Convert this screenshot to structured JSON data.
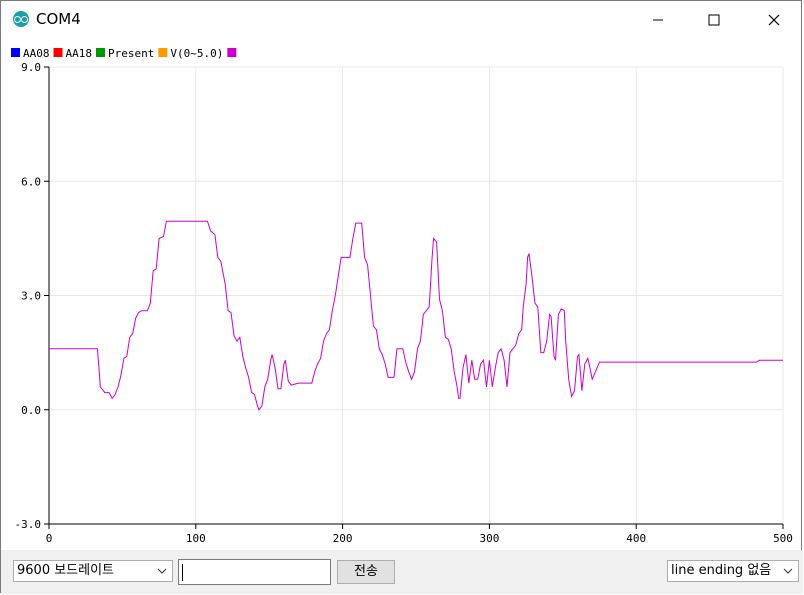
{
  "window": {
    "title": "COM4",
    "icon": "arduino-icon"
  },
  "legend": [
    {
      "label": "AA08",
      "color": "#0000ff"
    },
    {
      "label": "AA18",
      "color": "#ff0000"
    },
    {
      "label": "Present",
      "color": "#009900"
    },
    {
      "label": "V(0~5.0)",
      "color": "#ff9900"
    },
    {
      "label": "",
      "color": "#cc00cc"
    }
  ],
  "chart_data": {
    "type": "line",
    "xlim": [
      0,
      500
    ],
    "ylim": [
      -3.0,
      9.0
    ],
    "x_ticks": [
      "0",
      "100",
      "200",
      "300",
      "400",
      "500"
    ],
    "y_ticks": [
      "-3.0",
      "0.0",
      "3.0",
      "6.0",
      "9.0"
    ],
    "grid": true,
    "legend_placement": "top-left",
    "series": [
      {
        "color": "#cc00cc",
        "points": [
          [
            0,
            1.6
          ],
          [
            33,
            1.6
          ],
          [
            35,
            0.6
          ],
          [
            38,
            0.45
          ],
          [
            41,
            0.45
          ],
          [
            43,
            0.3
          ],
          [
            45,
            0.4
          ],
          [
            47,
            0.6
          ],
          [
            49,
            0.9
          ],
          [
            51,
            1.35
          ],
          [
            53,
            1.4
          ],
          [
            55,
            1.9
          ],
          [
            57,
            2.0
          ],
          [
            59,
            2.4
          ],
          [
            61,
            2.55
          ],
          [
            63,
            2.6
          ],
          [
            67,
            2.6
          ],
          [
            69,
            2.8
          ],
          [
            71,
            3.65
          ],
          [
            73,
            3.7
          ],
          [
            75,
            4.5
          ],
          [
            78,
            4.55
          ],
          [
            80,
            4.95
          ],
          [
            108,
            4.95
          ],
          [
            110,
            4.7
          ],
          [
            113,
            4.6
          ],
          [
            115,
            4.0
          ],
          [
            117,
            3.9
          ],
          [
            120,
            3.3
          ],
          [
            122,
            2.6
          ],
          [
            124,
            2.55
          ],
          [
            126,
            1.95
          ],
          [
            128,
            1.8
          ],
          [
            130,
            1.9
          ],
          [
            132,
            1.4
          ],
          [
            134,
            1.1
          ],
          [
            136,
            0.85
          ],
          [
            138,
            0.45
          ],
          [
            140,
            0.4
          ],
          [
            142,
            0.1
          ],
          [
            143,
            0.0
          ],
          [
            145,
            0.1
          ],
          [
            147,
            0.6
          ],
          [
            149,
            0.8
          ],
          [
            151,
            1.3
          ],
          [
            152,
            1.45
          ],
          [
            154,
            1.1
          ],
          [
            156,
            0.55
          ],
          [
            158,
            0.55
          ],
          [
            160,
            1.2
          ],
          [
            161,
            1.3
          ],
          [
            163,
            0.75
          ],
          [
            165,
            0.65
          ],
          [
            170,
            0.7
          ],
          [
            179,
            0.7
          ],
          [
            181,
            1.0
          ],
          [
            183,
            1.2
          ],
          [
            185,
            1.35
          ],
          [
            187,
            1.8
          ],
          [
            189,
            2.0
          ],
          [
            191,
            2.1
          ],
          [
            193,
            2.6
          ],
          [
            195,
            3.0
          ],
          [
            197,
            3.5
          ],
          [
            199,
            4.0
          ],
          [
            205,
            4.0
          ],
          [
            207,
            4.5
          ],
          [
            209,
            4.9
          ],
          [
            213,
            4.9
          ],
          [
            215,
            4.0
          ],
          [
            217,
            3.8
          ],
          [
            219,
            3.0
          ],
          [
            221,
            2.2
          ],
          [
            223,
            2.1
          ],
          [
            225,
            1.6
          ],
          [
            227,
            1.45
          ],
          [
            229,
            1.2
          ],
          [
            231,
            0.85
          ],
          [
            235,
            0.85
          ],
          [
            237,
            1.6
          ],
          [
            241,
            1.6
          ],
          [
            243,
            1.25
          ],
          [
            245,
            1.0
          ],
          [
            247,
            0.8
          ],
          [
            249,
            1.0
          ],
          [
            251,
            1.6
          ],
          [
            253,
            1.8
          ],
          [
            255,
            2.5
          ],
          [
            257,
            2.6
          ],
          [
            259,
            2.7
          ],
          [
            261,
            4.0
          ],
          [
            262,
            4.5
          ],
          [
            264,
            4.4
          ],
          [
            266,
            2.9
          ],
          [
            268,
            2.6
          ],
          [
            270,
            1.9
          ],
          [
            272,
            1.85
          ],
          [
            274,
            1.6
          ],
          [
            276,
            1.0
          ],
          [
            278,
            0.6
          ],
          [
            279,
            0.3
          ],
          [
            280,
            0.3
          ],
          [
            282,
            1.1
          ],
          [
            284,
            1.45
          ],
          [
            286,
            0.7
          ],
          [
            288,
            1.3
          ],
          [
            290,
            0.8
          ],
          [
            292,
            0.8
          ],
          [
            294,
            1.2
          ],
          [
            296,
            1.3
          ],
          [
            298,
            0.6
          ],
          [
            300,
            1.3
          ],
          [
            302,
            0.6
          ],
          [
            304,
            1.1
          ],
          [
            306,
            1.5
          ],
          [
            308,
            1.6
          ],
          [
            310,
            1.3
          ],
          [
            312,
            0.6
          ],
          [
            314,
            1.5
          ],
          [
            316,
            1.6
          ],
          [
            318,
            1.7
          ],
          [
            320,
            2.0
          ],
          [
            322,
            2.1
          ],
          [
            323,
            2.7
          ],
          [
            325,
            3.3
          ],
          [
            326,
            4.0
          ],
          [
            327,
            4.1
          ],
          [
            329,
            3.5
          ],
          [
            331,
            2.8
          ],
          [
            333,
            2.7
          ],
          [
            335,
            1.5
          ],
          [
            337,
            1.5
          ],
          [
            339,
            1.8
          ],
          [
            341,
            2.5
          ],
          [
            342,
            2.45
          ],
          [
            344,
            1.4
          ],
          [
            345,
            1.3
          ],
          [
            347,
            2.5
          ],
          [
            349,
            2.65
          ],
          [
            351,
            2.6
          ],
          [
            352,
            1.8
          ],
          [
            354,
            0.8
          ],
          [
            356,
            0.35
          ],
          [
            358,
            0.5
          ],
          [
            360,
            1.4
          ],
          [
            361,
            1.45
          ],
          [
            363,
            0.5
          ],
          [
            365,
            1.2
          ],
          [
            367,
            1.35
          ],
          [
            368,
            1.2
          ],
          [
            370,
            0.8
          ],
          [
            375,
            1.25
          ],
          [
            400,
            1.25
          ],
          [
            410,
            1.25
          ],
          [
            418,
            1.25
          ],
          [
            482,
            1.25
          ],
          [
            484,
            1.3
          ],
          [
            500,
            1.3
          ]
        ]
      }
    ]
  },
  "bottom_bar": {
    "baud_rate": "9600 보드레이트",
    "message_value": "",
    "send_label": "전송",
    "line_ending": "line ending 없음"
  }
}
